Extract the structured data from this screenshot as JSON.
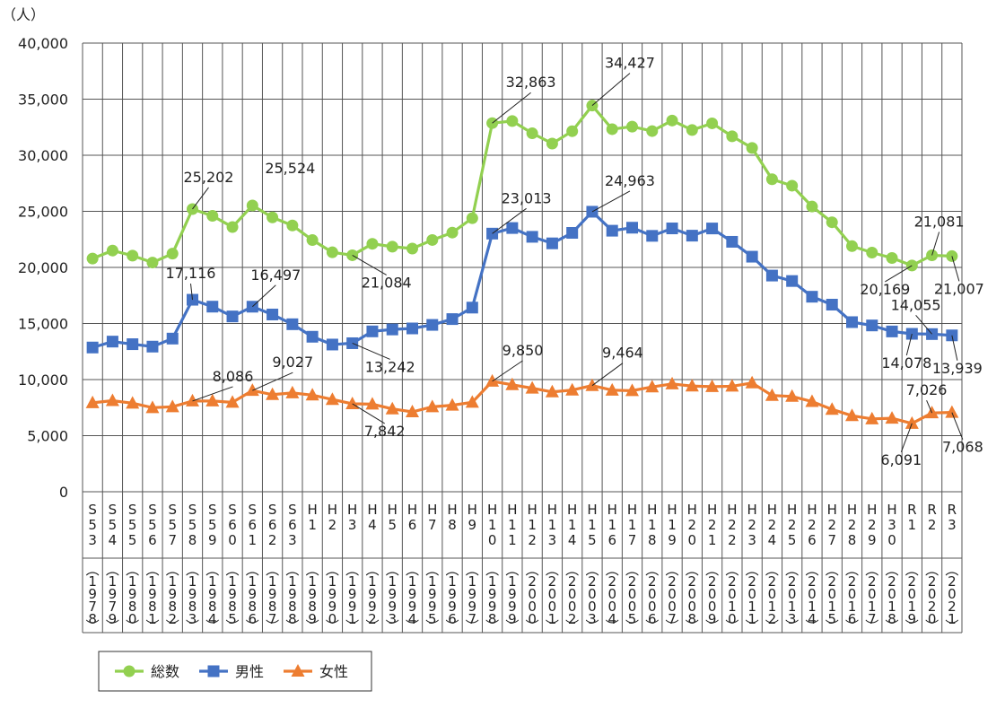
{
  "chart_data": {
    "type": "line",
    "ylabel": "（人）",
    "ylim": [
      0,
      40000
    ],
    "yticks": [
      "0",
      "5,000",
      "10,000",
      "15,000",
      "20,000",
      "25,000",
      "30,000",
      "35,000",
      "40,000"
    ],
    "grid": true,
    "legend_position": "bottom-left",
    "categories": [
      {
        "era": "S53",
        "year": "1978"
      },
      {
        "era": "S54",
        "year": "1979"
      },
      {
        "era": "S55",
        "year": "1980"
      },
      {
        "era": "S56",
        "year": "1981"
      },
      {
        "era": "S57",
        "year": "1982"
      },
      {
        "era": "S58",
        "year": "1983"
      },
      {
        "era": "S59",
        "year": "1984"
      },
      {
        "era": "S60",
        "year": "1985"
      },
      {
        "era": "S61",
        "year": "1986"
      },
      {
        "era": "S62",
        "year": "1987"
      },
      {
        "era": "S63",
        "year": "1988"
      },
      {
        "era": "H1",
        "year": "1989"
      },
      {
        "era": "H2",
        "year": "1990"
      },
      {
        "era": "H3",
        "year": "1991"
      },
      {
        "era": "H4",
        "year": "1992"
      },
      {
        "era": "H5",
        "year": "1993"
      },
      {
        "era": "H6",
        "year": "1994"
      },
      {
        "era": "H7",
        "year": "1995"
      },
      {
        "era": "H8",
        "year": "1996"
      },
      {
        "era": "H9",
        "year": "1997"
      },
      {
        "era": "H10",
        "year": "1998"
      },
      {
        "era": "H11",
        "year": "1999"
      },
      {
        "era": "H12",
        "year": "2000"
      },
      {
        "era": "H13",
        "year": "2001"
      },
      {
        "era": "H14",
        "year": "2002"
      },
      {
        "era": "H15",
        "year": "2003"
      },
      {
        "era": "H16",
        "year": "2004"
      },
      {
        "era": "H17",
        "year": "2005"
      },
      {
        "era": "H18",
        "year": "2006"
      },
      {
        "era": "H19",
        "year": "2007"
      },
      {
        "era": "H20",
        "year": "2008"
      },
      {
        "era": "H21",
        "year": "2009"
      },
      {
        "era": "H22",
        "year": "2010"
      },
      {
        "era": "H23",
        "year": "2011"
      },
      {
        "era": "H24",
        "year": "2012"
      },
      {
        "era": "H25",
        "year": "2013"
      },
      {
        "era": "H26",
        "year": "2014"
      },
      {
        "era": "H27",
        "year": "2015"
      },
      {
        "era": "H28",
        "year": "2016"
      },
      {
        "era": "H29",
        "year": "2017"
      },
      {
        "era": "H30",
        "year": "2018"
      },
      {
        "era": "R1",
        "year": "2019"
      },
      {
        "era": "R2",
        "year": "2020"
      },
      {
        "era": "R3",
        "year": "2021"
      }
    ],
    "series": [
      {
        "name": "総数",
        "color": "#92D050",
        "marker": "circle",
        "values": [
          20788,
          21503,
          21048,
          20434,
          21228,
          25202,
          24596,
          23599,
          25524,
          24460,
          23742,
          22436,
          21346,
          21084,
          22104,
          21851,
          21679,
          22445,
          23104,
          24391,
          32863,
          33048,
          31957,
          31042,
          32143,
          34427,
          32325,
          32552,
          32155,
          33093,
          32249,
          32845,
          31690,
          30651,
          27858,
          27283,
          25427,
          24025,
          21897,
          21321,
          20840,
          20169,
          21081,
          21007
        ]
      },
      {
        "name": "男性",
        "color": "#4472C4",
        "marker": "square",
        "values": [
          12859,
          13386,
          13155,
          12939,
          13654,
          17116,
          16502,
          15629,
          16497,
          15802,
          14934,
          13818,
          13123,
          13242,
          14296,
          14468,
          14560,
          14874,
          15393,
          16416,
          23013,
          23512,
          22727,
          22144,
          23080,
          24963,
          23272,
          23540,
          22813,
          23478,
          22831,
          23472,
          22283,
          20955,
          19273,
          18787,
          17386,
          16681,
          15121,
          14826,
          14290,
          14078,
          14055,
          13939
        ]
      },
      {
        "name": "女性",
        "color": "#ED7D31",
        "marker": "triangle",
        "values": [
          7929,
          8117,
          7893,
          7495,
          7574,
          8086,
          8094,
          7970,
          9027,
          8658,
          8808,
          8618,
          8223,
          7842,
          7808,
          7383,
          7119,
          7571,
          7711,
          7975,
          9850,
          9536,
          9230,
          8898,
          9063,
          9464,
          9053,
          9012,
          9342,
          9615,
          9418,
          9373,
          9407,
          9696,
          8585,
          8496,
          8041,
          7344,
          6776,
          6495,
          6550,
          6091,
          7026,
          7068
        ]
      }
    ],
    "data_labels": [
      {
        "series": 0,
        "index": 5,
        "text": "25,202"
      },
      {
        "series": 0,
        "index": 8,
        "text": "25,524"
      },
      {
        "series": 0,
        "index": 13,
        "text": "21,084"
      },
      {
        "series": 0,
        "index": 20,
        "text": "32,863"
      },
      {
        "series": 0,
        "index": 25,
        "text": "34,427"
      },
      {
        "series": 0,
        "index": 41,
        "text": "20,169"
      },
      {
        "series": 0,
        "index": 42,
        "text": "21,081"
      },
      {
        "series": 0,
        "index": 43,
        "text": "21,007"
      },
      {
        "series": 1,
        "index": 5,
        "text": "17,116"
      },
      {
        "series": 1,
        "index": 8,
        "text": "16,497"
      },
      {
        "series": 1,
        "index": 13,
        "text": "13,242"
      },
      {
        "series": 1,
        "index": 20,
        "text": "23,013"
      },
      {
        "series": 1,
        "index": 25,
        "text": "24,963"
      },
      {
        "series": 1,
        "index": 41,
        "text": "14,078"
      },
      {
        "series": 1,
        "index": 42,
        "text": "14,055"
      },
      {
        "series": 1,
        "index": 43,
        "text": "13,939"
      },
      {
        "series": 2,
        "index": 5,
        "text": "8,086"
      },
      {
        "series": 2,
        "index": 8,
        "text": "9,027"
      },
      {
        "series": 2,
        "index": 13,
        "text": "7,842"
      },
      {
        "series": 2,
        "index": 20,
        "text": "9,850"
      },
      {
        "series": 2,
        "index": 25,
        "text": "9,464"
      },
      {
        "series": 2,
        "index": 41,
        "text": "6,091"
      },
      {
        "series": 2,
        "index": 42,
        "text": "7,026"
      },
      {
        "series": 2,
        "index": 43,
        "text": "7,068"
      }
    ]
  }
}
